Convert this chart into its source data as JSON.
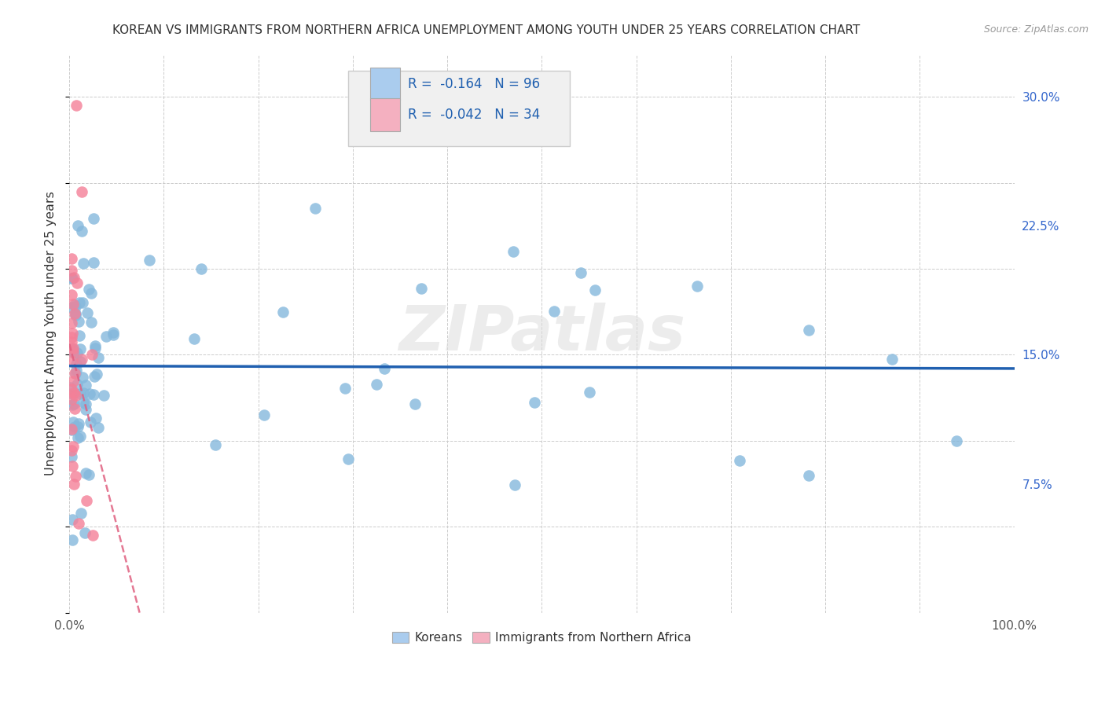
{
  "title": "KOREAN VS IMMIGRANTS FROM NORTHERN AFRICA UNEMPLOYMENT AMONG YOUTH UNDER 25 YEARS CORRELATION CHART",
  "source": "Source: ZipAtlas.com",
  "ylabel": "Unemployment Among Youth under 25 years",
  "xlim": [
    0,
    1.0
  ],
  "ylim": [
    0,
    0.325
  ],
  "xtick_pos": [
    0.0,
    0.1,
    0.2,
    0.3,
    0.4,
    0.5,
    0.6,
    0.7,
    0.8,
    0.9,
    1.0
  ],
  "xticklabels": [
    "0.0%",
    "",
    "",
    "",
    "",
    "",
    "",
    "",
    "",
    "",
    "100.0%"
  ],
  "ytick_positions": [
    0.075,
    0.15,
    0.225,
    0.3
  ],
  "ytick_labels": [
    "7.5%",
    "15.0%",
    "22.5%",
    "30.0%"
  ],
  "legend_korean_R": "-0.164",
  "legend_korean_N": "96",
  "legend_immig_R": "-0.042",
  "legend_immig_N": "34",
  "korean_scatter_color": "#85b8dc",
  "korean_line_color": "#2060b0",
  "immig_scatter_color": "#f48098",
  "immig_line_color": "#e06080",
  "korean_legend_color": "#aaccee",
  "immig_legend_color": "#f4b0c0",
  "background_color": "#ffffff",
  "grid_color": "#cccccc",
  "watermark": "ZIPatlas",
  "title_color": "#333333",
  "source_color": "#999999",
  "ylabel_color": "#333333",
  "tick_label_color_x": "#555555",
  "tick_label_color_y": "#3366cc",
  "legend_bg_color": "#f0f0f0",
  "legend_border_color": "#cccccc"
}
